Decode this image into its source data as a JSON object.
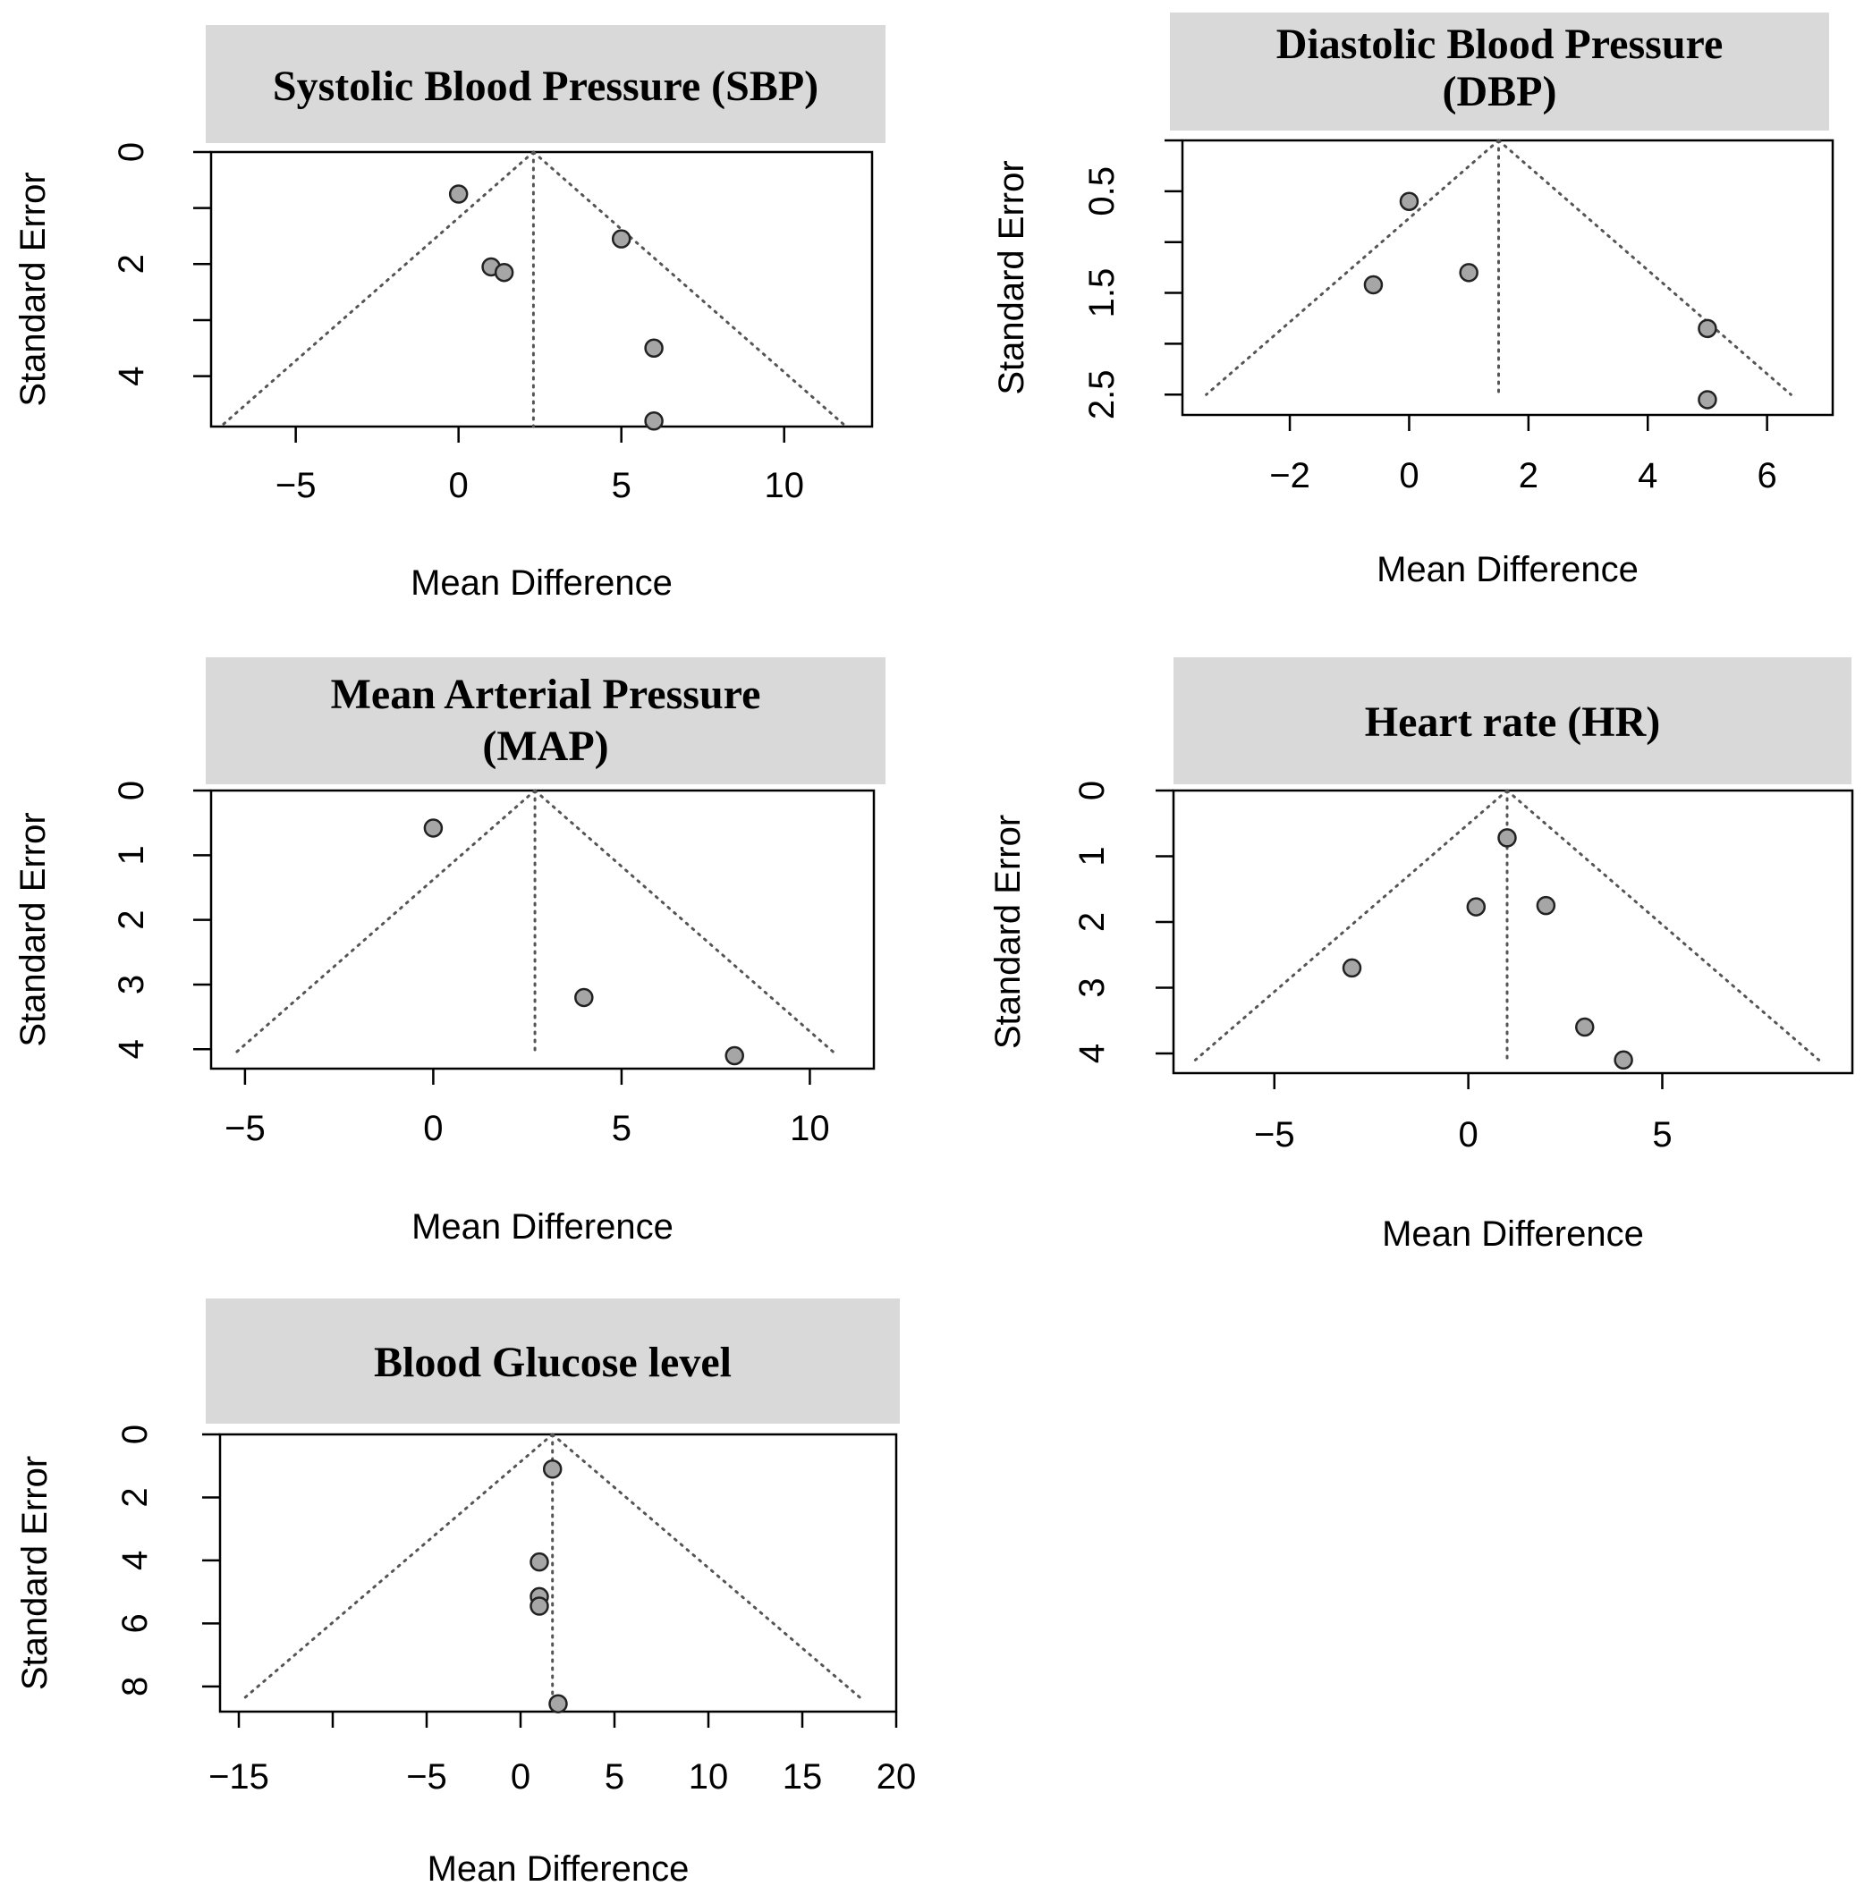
{
  "chart_data": [
    {
      "type": "scatter",
      "title": "Systolic Blood Pressure (SBP)",
      "title_lines": [
        "Systolic Blood Pressure (SBP)"
      ],
      "xlabel": "Mean Difference",
      "ylabel": "Standard Error",
      "xlim": [
        -7.6,
        12.7
      ],
      "ylim": [
        0,
        4.9
      ],
      "x_ticks": [
        -5,
        0,
        5,
        10
      ],
      "x_tick_labels": [
        "−5",
        "0",
        "5",
        "10"
      ],
      "y_ticks": [
        0,
        2,
        4
      ],
      "y_tick_labels": [
        "0",
        "2",
        "4"
      ],
      "y_minor_ticks": [
        1,
        3
      ],
      "y_reversed": true,
      "center": 2.3,
      "se_max": 4.9,
      "x": [
        0,
        1,
        1.4,
        5,
        6,
        6
      ],
      "y": [
        0.75,
        2.05,
        2.15,
        1.55,
        3.5,
        4.8
      ]
    },
    {
      "type": "scatter",
      "title": "Diastolic Blood Pressure (DBP)",
      "title_lines": [
        "Diastolic Blood Pressure",
        "(DBP)"
      ],
      "xlabel": "Mean Difference",
      "ylabel": "Standard Error",
      "xlim": [
        -3.8,
        7.1
      ],
      "ylim": [
        0,
        2.7
      ],
      "x_ticks": [
        -2,
        0,
        2,
        4,
        6
      ],
      "x_tick_labels": [
        "−2",
        "0",
        "2",
        "4",
        "6"
      ],
      "y_ticks": [
        0.5,
        1.5,
        2.5
      ],
      "y_tick_labels": [
        "0.5",
        "1.5",
        "2.5"
      ],
      "y_minor_ticks": [
        0,
        1,
        2
      ],
      "y_reversed": true,
      "center": 1.5,
      "se_max": 2.5,
      "x": [
        0,
        -0.6,
        1,
        5,
        5
      ],
      "y": [
        0.6,
        1.42,
        1.3,
        1.85,
        2.55
      ]
    },
    {
      "type": "scatter",
      "title": "Mean Arterial Pressure (MAP)",
      "title_lines": [
        "Mean Arterial Pressure",
        "(MAP)"
      ],
      "xlabel": "Mean Difference",
      "ylabel": "Standard Error",
      "xlim": [
        -5.9,
        11.7
      ],
      "ylim": [
        0,
        4.3
      ],
      "x_ticks": [
        -5,
        0,
        5,
        10
      ],
      "x_tick_labels": [
        "−5",
        "0",
        "5",
        "10"
      ],
      "y_ticks": [
        0,
        1,
        2,
        3,
        4
      ],
      "y_tick_labels": [
        "0",
        "1",
        "2",
        "3",
        "4"
      ],
      "y_minor_ticks": [],
      "y_reversed": true,
      "center": 2.7,
      "se_max": 4.1,
      "x": [
        0,
        4,
        8
      ],
      "y": [
        0.58,
        3.2,
        4.1
      ]
    },
    {
      "type": "scatter",
      "title": "Heart rate (HR)",
      "title_lines": [
        "Heart rate (HR)"
      ],
      "xlabel": "Mean Difference",
      "ylabel": "Standard Error",
      "xlim": [
        -7.6,
        9.9
      ],
      "ylim": [
        0,
        4.3
      ],
      "x_ticks": [
        -5,
        0,
        5
      ],
      "x_tick_labels": [
        "−5",
        "0",
        "5"
      ],
      "y_ticks": [
        0,
        1,
        2,
        3,
        4
      ],
      "y_tick_labels": [
        "0",
        "1",
        "2",
        "3",
        "4"
      ],
      "y_minor_ticks": [],
      "y_reversed": true,
      "center": 1,
      "se_max": 4.1,
      "x": [
        1,
        0.2,
        2,
        -3,
        3,
        4
      ],
      "y": [
        0.72,
        1.77,
        1.75,
        2.7,
        3.6,
        4.1
      ]
    },
    {
      "type": "scatter",
      "title": "Blood Glucose level",
      "title_lines": [
        "Blood Glucose level"
      ],
      "xlabel": "Mean Difference",
      "ylabel": "Standard Error",
      "xlim": [
        -16,
        20
      ],
      "ylim": [
        0,
        8.8
      ],
      "x_ticks": [
        -15,
        -10,
        -5,
        0,
        5,
        10,
        15,
        20
      ],
      "x_tick_labels": [
        "−15",
        "",
        "−5",
        "0",
        "5",
        "10",
        "15",
        "20"
      ],
      "y_ticks": [
        0,
        2,
        4,
        6,
        8
      ],
      "y_tick_labels": [
        "0",
        "2",
        "4",
        "6",
        "8"
      ],
      "y_minor_ticks": [],
      "y_reversed": true,
      "center": 1.7,
      "se_max": 8.4,
      "x": [
        1.7,
        1,
        1,
        1,
        2
      ],
      "y": [
        1.1,
        4.05,
        5.15,
        5.45,
        8.55
      ]
    }
  ]
}
